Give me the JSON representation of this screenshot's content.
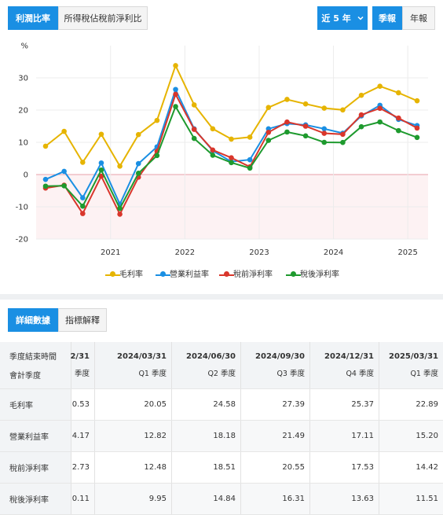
{
  "top_tabs": [
    {
      "label": "利潤比率",
      "active": true
    },
    {
      "label": "所得稅佔稅前淨利比",
      "active": false
    }
  ],
  "period_select": {
    "label": "近 5 年"
  },
  "freq_tabs": [
    {
      "label": "季報",
      "active": true
    },
    {
      "label": "年報",
      "active": false
    }
  ],
  "chart_data": {
    "type": "line",
    "ylabel": "%",
    "ylim": [
      -20,
      40
    ],
    "yticks": [
      -20,
      -10,
      0,
      10,
      20,
      30
    ],
    "xticks": [
      "2021",
      "2022",
      "2023",
      "2024",
      "2025"
    ],
    "x": [
      "2020Q1",
      "2020Q2",
      "2020Q3",
      "2020Q4",
      "2021Q1",
      "2021Q2",
      "2021Q3",
      "2021Q4",
      "2022Q1",
      "2022Q2",
      "2022Q3",
      "2022Q4",
      "2023Q1",
      "2023Q2",
      "2023Q3",
      "2023Q4",
      "2024Q1",
      "2024Q2",
      "2024Q3",
      "2024Q4",
      "2025Q1"
    ],
    "series": [
      {
        "name": "毛利率",
        "color": "#e6b400",
        "values": [
          8.8,
          13.4,
          3.8,
          12.5,
          2.6,
          12.4,
          16.8,
          33.8,
          21.6,
          14.2,
          11.0,
          11.6,
          20.8,
          23.3,
          21.9,
          20.6,
          20.05,
          24.58,
          27.39,
          25.37,
          22.89
        ]
      },
      {
        "name": "營業利益率",
        "color": "#1a8fe3",
        "values": [
          -1.5,
          1.0,
          -7.2,
          3.6,
          -9.2,
          3.4,
          8.6,
          26.4,
          14.2,
          7.4,
          4.0,
          4.6,
          14.2,
          15.8,
          15.4,
          14.2,
          12.82,
          18.18,
          21.49,
          17.11,
          15.2
        ]
      },
      {
        "name": "稅前淨利率",
        "color": "#d9362b",
        "values": [
          -4.2,
          -3.3,
          -12.1,
          -0.5,
          -12.3,
          -0.8,
          7.2,
          24.9,
          14.0,
          7.6,
          5.2,
          2.4,
          13.1,
          16.3,
          15.0,
          12.8,
          12.48,
          18.51,
          20.55,
          17.53,
          14.42
        ]
      },
      {
        "name": "稅後淨利率",
        "color": "#1e9a2e",
        "values": [
          -3.6,
          -3.5,
          -9.8,
          1.4,
          -10.5,
          0.4,
          5.9,
          21.1,
          11.2,
          6.0,
          3.7,
          2.0,
          10.6,
          13.2,
          12.0,
          10.0,
          9.95,
          14.84,
          16.31,
          13.63,
          11.51
        ]
      }
    ]
  },
  "detail_tabs": [
    {
      "label": "詳細數據",
      "active": true
    },
    {
      "label": "指標解釋",
      "active": false
    }
  ],
  "table": {
    "header_row1_label": "季度結束時間",
    "header_row2_label": "會計季度",
    "columns": [
      {
        "date": "2/31",
        "quarter": "季度"
      },
      {
        "date": "2024/03/31",
        "quarter": "Q1 季度"
      },
      {
        "date": "2024/06/30",
        "quarter": "Q2 季度"
      },
      {
        "date": "2024/09/30",
        "quarter": "Q3 季度"
      },
      {
        "date": "2024/12/31",
        "quarter": "Q4 季度"
      },
      {
        "date": "2025/03/31",
        "quarter": "Q1 季度"
      }
    ],
    "rows": [
      {
        "label": "毛利率",
        "values": [
          "0.53",
          "20.05",
          "24.58",
          "27.39",
          "25.37",
          "22.89"
        ]
      },
      {
        "label": "營業利益率",
        "values": [
          "4.17",
          "12.82",
          "18.18",
          "21.49",
          "17.11",
          "15.20"
        ]
      },
      {
        "label": "稅前淨利率",
        "values": [
          "2.73",
          "12.48",
          "18.51",
          "20.55",
          "17.53",
          "14.42"
        ]
      },
      {
        "label": "稅後淨利率",
        "values": [
          "0.11",
          "9.95",
          "14.84",
          "16.31",
          "13.63",
          "11.51"
        ]
      }
    ]
  }
}
